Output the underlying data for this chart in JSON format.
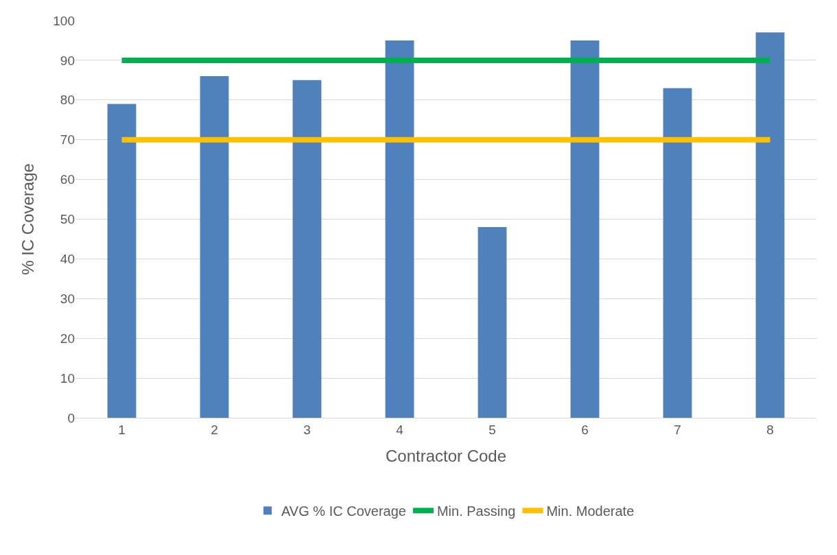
{
  "chart_data": {
    "type": "bar",
    "xlabel": "Contractor Code",
    "ylabel": "% IC Coverage",
    "categories": [
      "1",
      "2",
      "3",
      "4",
      "5",
      "6",
      "7",
      "8"
    ],
    "series": [
      {
        "name": "AVG % IC Coverage",
        "color": "#4f81bd",
        "values": [
          79,
          86,
          85,
          95,
          48,
          95,
          83,
          97
        ]
      },
      {
        "name": "Min. Passing",
        "type": "line",
        "color": "#00b050",
        "values": [
          90,
          90,
          90,
          90,
          90,
          90,
          90,
          90
        ]
      },
      {
        "name": "Min. Moderate",
        "type": "line",
        "color": "#ffc000",
        "values": [
          70,
          70,
          70,
          70,
          70,
          70,
          70,
          70
        ]
      }
    ],
    "ylim": [
      0,
      100
    ],
    "yticks": [
      0,
      10,
      20,
      30,
      40,
      50,
      60,
      70,
      80,
      90,
      100
    ],
    "grid": "y",
    "legend": "bottom",
    "marker": "none",
    "line_style": "solid"
  }
}
